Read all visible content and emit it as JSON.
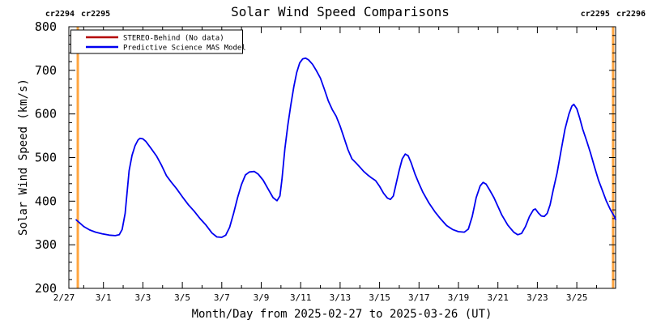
{
  "chart_data": {
    "type": "line",
    "title": "Solar Wind Speed Comparisons",
    "xlabel": "Month/Day from 2025-02-27 to 2025-03-26 (UT)",
    "ylabel": "Solar Wind Speed (km/s)",
    "ylim": [
      200,
      800
    ],
    "y_major_step": 100,
    "y_minor_step": 20,
    "y_tick_labels": [
      "200",
      "300",
      "400",
      "500",
      "600",
      "700",
      "800"
    ],
    "x_range_days": [
      0,
      28
    ],
    "grid": false,
    "legend_position": "top-left",
    "x_ticks": [
      {
        "day": 0,
        "label": "2/27"
      },
      {
        "day": 2,
        "label": "3/1"
      },
      {
        "day": 4,
        "label": "3/3"
      },
      {
        "day": 6,
        "label": "3/5"
      },
      {
        "day": 8,
        "label": "3/7"
      },
      {
        "day": 10,
        "label": "3/9"
      },
      {
        "day": 12,
        "label": "3/11"
      },
      {
        "day": 14,
        "label": "3/13"
      },
      {
        "day": 16,
        "label": "3/15"
      },
      {
        "day": 18,
        "label": "3/17"
      },
      {
        "day": 20,
        "label": "3/19"
      },
      {
        "day": 22,
        "label": "3/21"
      },
      {
        "day": 24,
        "label": "3/23"
      },
      {
        "day": 26,
        "label": "3/25"
      }
    ],
    "series": [
      {
        "name": "STEREO-Behind (No data)",
        "color": "#b40000",
        "points_day_kms": []
      },
      {
        "name": "Predictive Science MAS Model",
        "color": "#0000f0",
        "points_day_kms": [
          [
            0.62,
            357
          ],
          [
            0.8,
            350
          ],
          [
            1.0,
            342
          ],
          [
            1.3,
            334
          ],
          [
            1.6,
            329
          ],
          [
            1.95,
            325
          ],
          [
            2.3,
            322
          ],
          [
            2.6,
            321
          ],
          [
            2.8,
            323
          ],
          [
            2.95,
            335
          ],
          [
            3.1,
            372
          ],
          [
            3.2,
            420
          ],
          [
            3.3,
            470
          ],
          [
            3.45,
            505
          ],
          [
            3.6,
            527
          ],
          [
            3.75,
            540
          ],
          [
            3.85,
            544
          ],
          [
            4.0,
            543
          ],
          [
            4.15,
            537
          ],
          [
            4.4,
            522
          ],
          [
            4.7,
            503
          ],
          [
            4.95,
            482
          ],
          [
            5.2,
            458
          ],
          [
            5.45,
            443
          ],
          [
            5.7,
            429
          ],
          [
            6.0,
            410
          ],
          [
            6.3,
            392
          ],
          [
            6.6,
            377
          ],
          [
            6.9,
            360
          ],
          [
            7.2,
            345
          ],
          [
            7.5,
            327
          ],
          [
            7.75,
            318
          ],
          [
            8.0,
            317
          ],
          [
            8.2,
            322
          ],
          [
            8.4,
            340
          ],
          [
            8.6,
            372
          ],
          [
            8.8,
            408
          ],
          [
            9.0,
            438
          ],
          [
            9.2,
            460
          ],
          [
            9.4,
            467
          ],
          [
            9.65,
            468
          ],
          [
            9.85,
            462
          ],
          [
            10.1,
            448
          ],
          [
            10.35,
            428
          ],
          [
            10.6,
            408
          ],
          [
            10.8,
            401
          ],
          [
            10.95,
            412
          ],
          [
            11.05,
            450
          ],
          [
            11.2,
            520
          ],
          [
            11.35,
            575
          ],
          [
            11.5,
            620
          ],
          [
            11.65,
            662
          ],
          [
            11.8,
            695
          ],
          [
            11.95,
            717
          ],
          [
            12.1,
            726
          ],
          [
            12.25,
            728
          ],
          [
            12.4,
            724
          ],
          [
            12.6,
            714
          ],
          [
            12.8,
            699
          ],
          [
            13.0,
            682
          ],
          [
            13.2,
            657
          ],
          [
            13.4,
            630
          ],
          [
            13.6,
            610
          ],
          [
            13.8,
            595
          ],
          [
            14.0,
            572
          ],
          [
            14.2,
            545
          ],
          [
            14.4,
            518
          ],
          [
            14.6,
            497
          ],
          [
            14.8,
            488
          ],
          [
            15.0,
            478
          ],
          [
            15.2,
            468
          ],
          [
            15.4,
            460
          ],
          [
            15.6,
            453
          ],
          [
            15.8,
            447
          ],
          [
            16.0,
            434
          ],
          [
            16.2,
            418
          ],
          [
            16.4,
            407
          ],
          [
            16.55,
            404
          ],
          [
            16.7,
            412
          ],
          [
            16.85,
            442
          ],
          [
            17.0,
            472
          ],
          [
            17.15,
            497
          ],
          [
            17.3,
            508
          ],
          [
            17.45,
            504
          ],
          [
            17.6,
            488
          ],
          [
            17.8,
            462
          ],
          [
            18.0,
            440
          ],
          [
            18.2,
            420
          ],
          [
            18.5,
            396
          ],
          [
            18.8,
            376
          ],
          [
            19.1,
            359
          ],
          [
            19.4,
            344
          ],
          [
            19.7,
            335
          ],
          [
            20.0,
            330
          ],
          [
            20.3,
            329
          ],
          [
            20.5,
            336
          ],
          [
            20.7,
            365
          ],
          [
            20.9,
            408
          ],
          [
            21.1,
            435
          ],
          [
            21.25,
            443
          ],
          [
            21.4,
            439
          ],
          [
            21.6,
            424
          ],
          [
            21.8,
            408
          ],
          [
            22.0,
            388
          ],
          [
            22.2,
            368
          ],
          [
            22.5,
            345
          ],
          [
            22.8,
            329
          ],
          [
            23.0,
            323
          ],
          [
            23.2,
            326
          ],
          [
            23.4,
            342
          ],
          [
            23.6,
            365
          ],
          [
            23.8,
            380
          ],
          [
            23.9,
            382
          ],
          [
            24.05,
            373
          ],
          [
            24.2,
            366
          ],
          [
            24.35,
            365
          ],
          [
            24.5,
            372
          ],
          [
            24.65,
            392
          ],
          [
            24.8,
            425
          ],
          [
            25.0,
            465
          ],
          [
            25.2,
            515
          ],
          [
            25.4,
            565
          ],
          [
            25.6,
            600
          ],
          [
            25.75,
            618
          ],
          [
            25.85,
            622
          ],
          [
            26.0,
            612
          ],
          [
            26.15,
            590
          ],
          [
            26.3,
            565
          ],
          [
            26.5,
            538
          ],
          [
            26.7,
            510
          ],
          [
            26.9,
            478
          ],
          [
            27.1,
            448
          ],
          [
            27.3,
            424
          ],
          [
            27.5,
            400
          ],
          [
            27.7,
            381
          ],
          [
            27.9,
            365
          ],
          [
            28.0,
            358
          ]
        ]
      }
    ],
    "carrington_boundaries": {
      "color": "#ffa540",
      "lines": [
        {
          "day": 0.7,
          "label_left": "cr2294",
          "label_right": "cr2295"
        },
        {
          "day": 27.84,
          "label_left": "cr2295",
          "label_right": "cr2296"
        }
      ]
    }
  },
  "legend": {
    "entries": [
      {
        "label": "STEREO-Behind (No data)"
      },
      {
        "label": "Predictive Science MAS Model"
      }
    ]
  }
}
